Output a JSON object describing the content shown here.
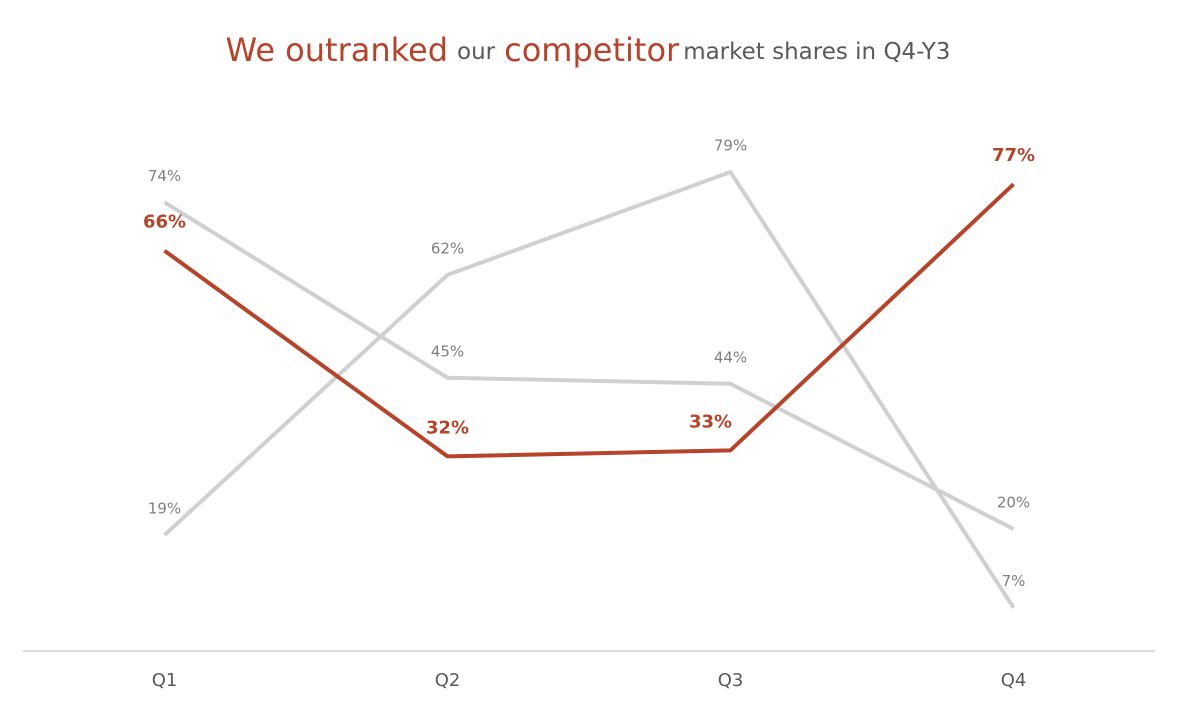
{
  "chart_data": {
    "type": "line",
    "title": [
      {
        "text": "We outranked",
        "emphasis": true
      },
      {
        "text": "our",
        "emphasis": false
      },
      {
        "text": "competitor",
        "emphasis": true
      },
      {
        "text": "market shares in Q4-Y3",
        "emphasis": false
      }
    ],
    "categories": [
      "Q1",
      "Q2",
      "Q3",
      "Q4"
    ],
    "series": [
      {
        "color": "#d0d0d0",
        "label_color": "#808080",
        "values": [
          74,
          45,
          44,
          20
        ],
        "value_labels": [
          "74%",
          "45%",
          "44%",
          "20%"
        ]
      },
      {
        "color": "#d0d0d0",
        "label_color": "#808080",
        "values": [
          19,
          62,
          79,
          7
        ],
        "value_labels": [
          "19%",
          "62%",
          "79%",
          "7%"
        ]
      },
      {
        "color": "#b5442a",
        "label_color": "#b5442a",
        "values": [
          66,
          32,
          33,
          77
        ],
        "value_labels": [
          "66%",
          "32%",
          "33%",
          "77%"
        ]
      }
    ],
    "ylim": [
      0,
      100
    ]
  }
}
